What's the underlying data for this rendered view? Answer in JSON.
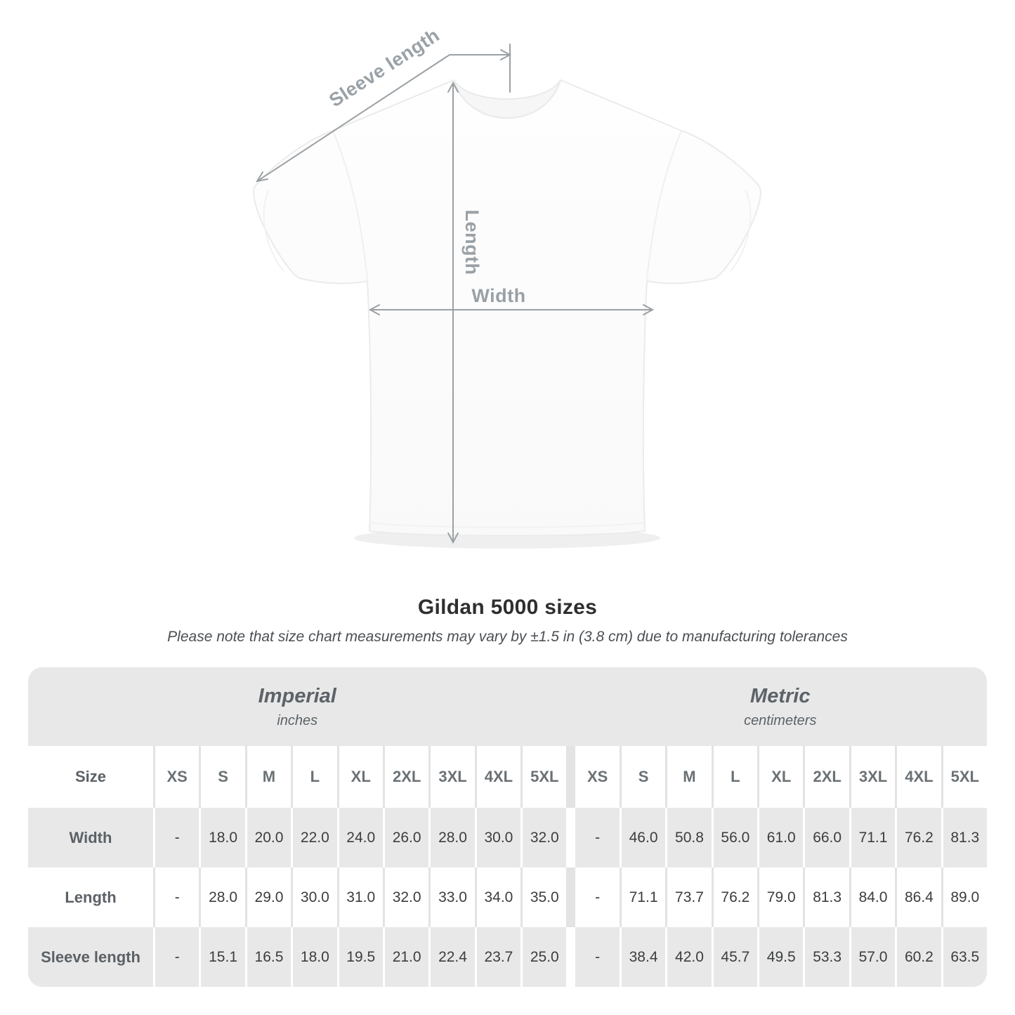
{
  "title": "Gildan 5000 sizes",
  "note": "Please note that size chart measurements may vary by ±1.5 in (3.8 cm) due to manufacturing tolerances",
  "diagram": {
    "sleeve_length_label": "Sleeve length",
    "length_label": "Length",
    "width_label": "Width"
  },
  "chart_data": {
    "type": "table",
    "title": "Gildan 5000 sizes",
    "size_column_header": "Size",
    "sizes": [
      "XS",
      "S",
      "M",
      "L",
      "XL",
      "2XL",
      "3XL",
      "4XL",
      "5XL"
    ],
    "unit_groups": [
      {
        "name": "Imperial",
        "unit": "inches"
      },
      {
        "name": "Metric",
        "unit": "centimeters"
      }
    ],
    "rows": [
      {
        "label": "Width",
        "imperial": [
          "-",
          "18.0",
          "20.0",
          "22.0",
          "24.0",
          "26.0",
          "28.0",
          "30.0",
          "32.0"
        ],
        "metric": [
          "-",
          "46.0",
          "50.8",
          "56.0",
          "61.0",
          "66.0",
          "71.1",
          "76.2",
          "81.3"
        ]
      },
      {
        "label": "Length",
        "imperial": [
          "-",
          "28.0",
          "29.0",
          "30.0",
          "31.0",
          "32.0",
          "33.0",
          "34.0",
          "35.0"
        ],
        "metric": [
          "-",
          "71.1",
          "73.7",
          "76.2",
          "79.0",
          "81.3",
          "84.0",
          "86.4",
          "89.0"
        ]
      },
      {
        "label": "Sleeve length",
        "imperial": [
          "-",
          "15.1",
          "16.5",
          "18.0",
          "19.5",
          "21.0",
          "22.4",
          "23.7",
          "25.0"
        ],
        "metric": [
          "-",
          "38.4",
          "42.0",
          "45.7",
          "49.5",
          "53.3",
          "57.0",
          "60.2",
          "63.5"
        ]
      }
    ]
  },
  "colors": {
    "row_band_gray": "#e8e8e8",
    "divider_on_white": "#e3e3e3",
    "divider_on_gray": "#ffffff",
    "value_text": "#3b3d3f",
    "size_header_text": "#6a7175",
    "row_label_text": "#5b6166",
    "group_header_text": "#5c6267",
    "title_text": "#2e2f30",
    "note_text": "#4b4f53",
    "arrow_line": "#9aa0a4",
    "measure_label_text": "#9aa1a6",
    "shirt_outline": "#ebebeb"
  }
}
